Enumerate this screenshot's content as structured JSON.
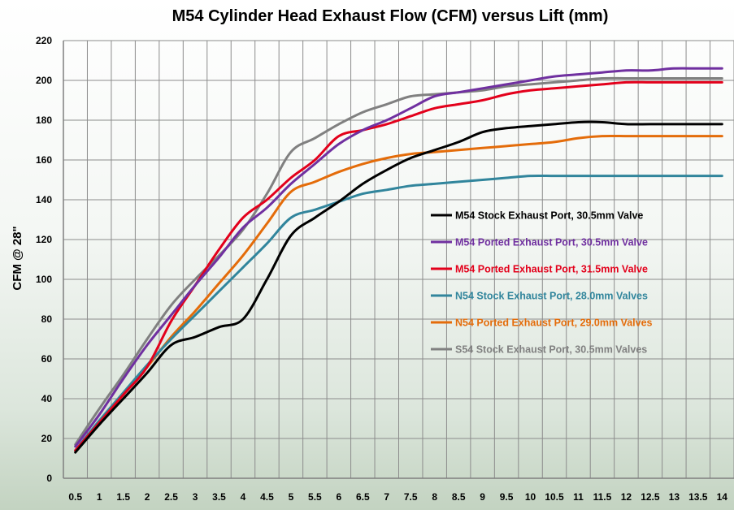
{
  "chart_data": {
    "type": "line",
    "title": "M54 Cylinder Head Exhaust Flow (CFM) versus Lift (mm)",
    "xlabel": "",
    "ylabel": "CFM @ 28\"",
    "ylim": [
      0,
      220
    ],
    "yticks": [
      0,
      20,
      40,
      60,
      80,
      100,
      120,
      140,
      160,
      180,
      200,
      220
    ],
    "x": [
      0.5,
      1,
      1.5,
      2,
      2.5,
      3,
      3.5,
      4,
      4.5,
      5,
      5.5,
      6,
      6.5,
      7,
      7.5,
      8,
      8.5,
      9,
      9.5,
      10,
      10.5,
      11,
      11.5,
      12,
      12.5,
      13,
      13.5,
      14
    ],
    "xtick_labels": [
      "0.5",
      "1",
      "1.5",
      "2",
      "2.5",
      "3",
      "3.5",
      "4",
      "4.5",
      "5",
      "5.5",
      "6",
      "6.5",
      "7",
      "7.5",
      "8",
      "8.5",
      "9",
      "9.5",
      "10",
      "10.5",
      "11",
      "11.5",
      "12",
      "12.5",
      "13",
      "13.5",
      "14"
    ],
    "grid": true,
    "legend_position": "center-right",
    "series": [
      {
        "name": "M54 Stock Exhaust Port, 30.5mm Valve",
        "color": "#000000",
        "values": [
          13,
          27,
          40,
          53,
          67,
          71,
          76,
          80,
          100,
          122,
          131,
          139,
          148,
          155,
          161,
          165,
          169,
          174,
          176,
          177,
          178,
          179,
          179,
          178,
          178,
          178,
          178,
          178
        ]
      },
      {
        "name": "M54 Ported Exhaust Port, 30.5mm Valve",
        "color": "#7030a0",
        "values": [
          16,
          32,
          50,
          67,
          82,
          97,
          111,
          126,
          136,
          148,
          158,
          168,
          175,
          180,
          186,
          192,
          194,
          196,
          198,
          200,
          202,
          203,
          204,
          205,
          205,
          206,
          206,
          206
        ]
      },
      {
        "name": "M54 Ported Exhaust Port, 31.5mm Valve",
        "color": "#e3001b",
        "values": [
          14,
          28,
          42,
          56,
          79,
          97,
          115,
          131,
          140,
          151,
          160,
          172,
          175,
          178,
          182,
          186,
          188,
          190,
          193,
          195,
          196,
          197,
          198,
          199,
          199,
          199,
          199,
          199
        ]
      },
      {
        "name": "N54 Stock Exhaust Port, 28.0mm Valves",
        "color": "#31859c",
        "values": [
          14,
          29,
          43,
          57,
          70,
          82,
          94,
          106,
          118,
          131,
          135,
          139,
          143,
          145,
          147,
          148,
          149,
          150,
          151,
          152,
          152,
          152,
          152,
          152,
          152,
          152,
          152,
          152
        ]
      },
      {
        "name": "N54 Ported Exhaust Port, 29.0mm Valves",
        "color": "#e46c0a",
        "values": [
          14,
          28,
          42,
          56,
          71,
          84,
          98,
          112,
          128,
          144,
          149,
          154,
          158,
          161,
          163,
          164,
          165,
          166,
          167,
          168,
          169,
          171,
          172,
          172,
          172,
          172,
          172,
          172
        ]
      },
      {
        "name": "S54 Stock Exhaust Port, 30.5mm Valves",
        "color": "#808080",
        "values": [
          17,
          35,
          52,
          70,
          87,
          100,
          112,
          125,
          143,
          164,
          171,
          178,
          184,
          188,
          192,
          193,
          194,
          195,
          197,
          198,
          199,
          200,
          201,
          201,
          201,
          201,
          201,
          201
        ]
      }
    ]
  }
}
